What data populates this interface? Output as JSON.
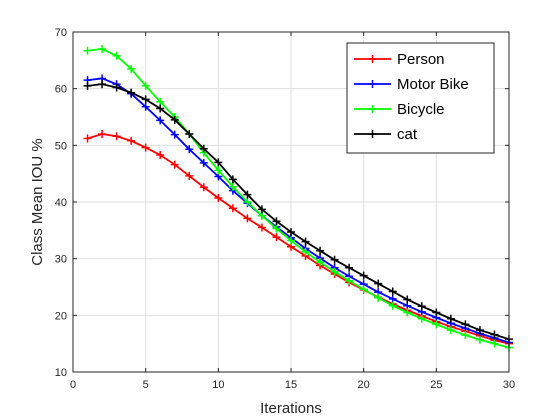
{
  "chart_data": {
    "type": "line",
    "title": "",
    "xlabel": "Iterations",
    "ylabel": "Class Mean IOU %",
    "xlim": [
      0,
      30
    ],
    "ylim": [
      10,
      70
    ],
    "xticks": [
      0,
      5,
      10,
      15,
      20,
      25,
      30
    ],
    "yticks": [
      10,
      20,
      30,
      40,
      50,
      60,
      70
    ],
    "grid": true,
    "legend_position": "top-right",
    "x": [
      1,
      2,
      3,
      4,
      5,
      6,
      7,
      8,
      9,
      10,
      11,
      12,
      13,
      14,
      15,
      16,
      17,
      18,
      19,
      20,
      21,
      22,
      23,
      24,
      25,
      26,
      27,
      28,
      29,
      30
    ],
    "series": [
      {
        "name": "Person",
        "color": "#ff0000",
        "marker": "plus",
        "values": [
          51.2,
          52.0,
          51.6,
          50.8,
          49.6,
          48.3,
          46.6,
          44.6,
          42.6,
          40.7,
          38.9,
          37.1,
          35.5,
          33.8,
          32.1,
          30.5,
          28.8,
          27.3,
          25.8,
          24.5,
          23.2,
          22.0,
          20.9,
          19.9,
          18.9,
          18.0,
          17.2,
          16.4,
          15.6,
          15.0
        ]
      },
      {
        "name": "Motor Bike",
        "color": "#0000ff",
        "marker": "plus",
        "values": [
          61.5,
          61.8,
          60.8,
          59.1,
          56.8,
          54.4,
          51.9,
          49.3,
          46.9,
          44.5,
          42.0,
          39.8,
          37.6,
          35.6,
          33.7,
          31.8,
          30.1,
          28.4,
          26.9,
          25.5,
          24.1,
          22.9,
          21.7,
          20.6,
          19.6,
          18.6,
          17.7,
          16.8,
          16.0,
          15.2
        ]
      },
      {
        "name": "Bicycle",
        "color": "#00ff00",
        "marker": "plus",
        "values": [
          66.7,
          67.0,
          65.8,
          63.5,
          60.5,
          57.7,
          55.0,
          52.0,
          48.7,
          45.6,
          42.7,
          40.0,
          37.6,
          35.3,
          33.2,
          31.2,
          29.4,
          27.7,
          26.1,
          24.6,
          23.1,
          21.7,
          20.5,
          19.4,
          18.4,
          17.4,
          16.5,
          15.7,
          15.0,
          14.3
        ]
      },
      {
        "name": "cat",
        "color": "#000000",
        "marker": "plus",
        "values": [
          60.5,
          60.8,
          60.2,
          59.3,
          58.1,
          56.5,
          54.5,
          52.0,
          49.4,
          47.0,
          44.0,
          41.3,
          38.7,
          36.6,
          34.7,
          33.0,
          31.4,
          29.8,
          28.4,
          27.0,
          25.6,
          24.2,
          22.8,
          21.6,
          20.5,
          19.4,
          18.4,
          17.4,
          16.6,
          15.8
        ]
      }
    ]
  }
}
